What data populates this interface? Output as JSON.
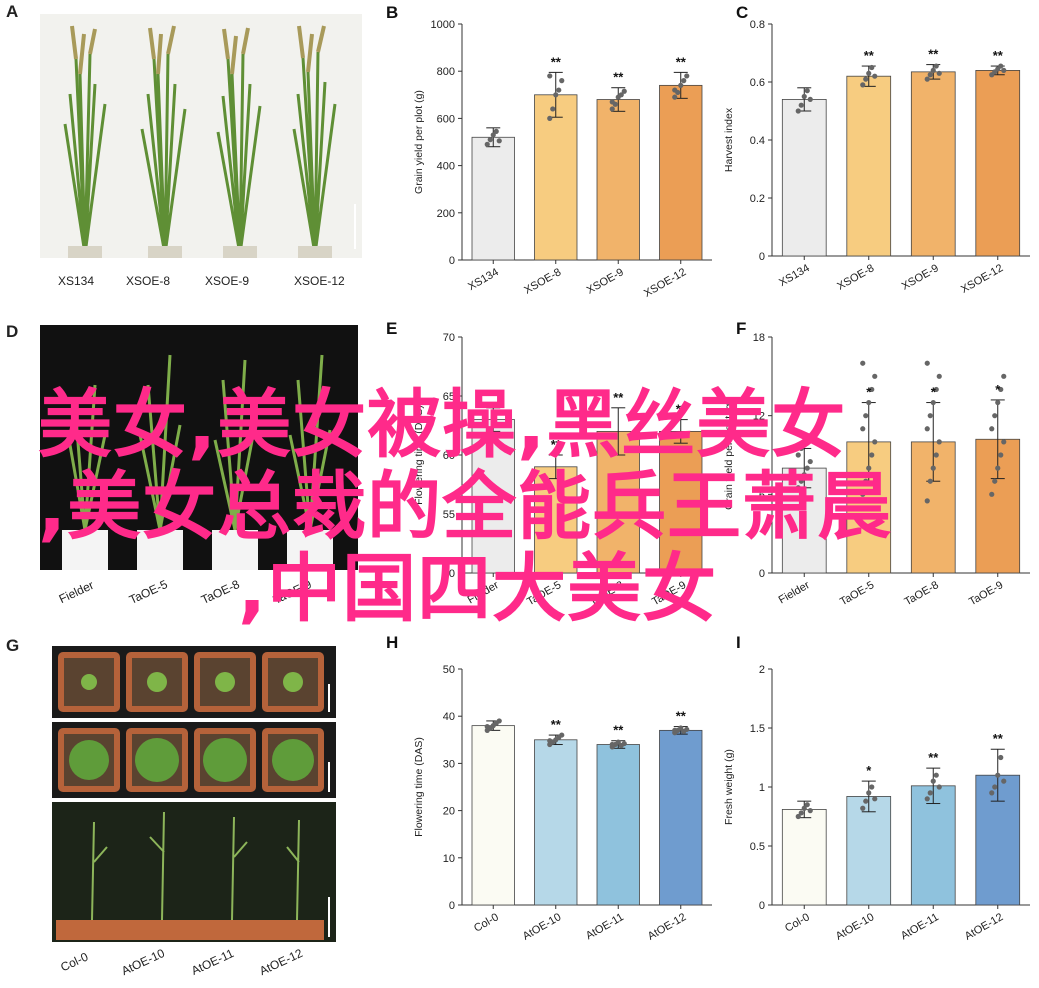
{
  "overlay": {
    "line1": "美女,美女被操,黑丝美女",
    "line2": ",美女总裁的全能兵王萧晨",
    "line3": ",中国四大美女"
  },
  "panels": {
    "A": {
      "letter": "A",
      "labels": [
        "XS134",
        "XSOE-8",
        "XSOE-9",
        "XSOE-12"
      ]
    },
    "D": {
      "letter": "D",
      "labels": [
        "Fielder",
        "TaOE-5",
        "TaOE-8",
        "TaOE-9"
      ]
    },
    "G": {
      "letter": "G",
      "labels": [
        "Col-0",
        "AtOE-10",
        "AtOE-11",
        "AtOE-12"
      ]
    }
  },
  "colors": {
    "photo_bg_dark": "#2a2a2a",
    "photo_bg_light": "#f2f2ee",
    "plant_green": "#5f8f35",
    "pot_brown": "#b5623a",
    "soil": "#5a4330",
    "overlay_text": "#ff2a8a"
  },
  "chart_data": [
    {
      "id": "B",
      "letter": "B",
      "type": "bar",
      "categories": [
        "XS134",
        "XSOE-8",
        "XSOE-9",
        "XSOE-12"
      ],
      "values": [
        520,
        700,
        680,
        740
      ],
      "errors": [
        40,
        95,
        50,
        55
      ],
      "significance": [
        "",
        "**",
        "**",
        "**"
      ],
      "ylabel": "Grain yield per plot (g)",
      "ylim": [
        0,
        1000
      ],
      "yticks": [
        0,
        200,
        400,
        600,
        800,
        1000
      ],
      "colors": [
        "#ececec",
        "#f7cc80",
        "#f1b36a",
        "#eb9e55"
      ],
      "points": [
        [
          490,
          510,
          530,
          545,
          505
        ],
        [
          600,
          640,
          700,
          720,
          760,
          780
        ],
        [
          640,
          660,
          690,
          700,
          715,
          670
        ],
        [
          690,
          710,
          740,
          760,
          780,
          720
        ]
      ]
    },
    {
      "id": "C",
      "letter": "C",
      "type": "bar",
      "categories": [
        "XS134",
        "XSOE-8",
        "XSOE-9",
        "XSOE-12"
      ],
      "values": [
        0.54,
        0.62,
        0.635,
        0.64
      ],
      "errors": [
        0.04,
        0.035,
        0.025,
        0.015
      ],
      "significance": [
        "",
        "**",
        "**",
        "**"
      ],
      "ylabel": "Harvest index",
      "ylim": [
        0,
        0.8
      ],
      "yticks": [
        0,
        0.2,
        0.4,
        0.6,
        0.8
      ],
      "colors": [
        "#ececec",
        "#f7cc80",
        "#f1b36a",
        "#eb9e55"
      ],
      "points": [
        [
          0.5,
          0.52,
          0.55,
          0.57,
          0.54
        ],
        [
          0.59,
          0.61,
          0.63,
          0.65,
          0.62
        ],
        [
          0.61,
          0.625,
          0.64,
          0.655,
          0.63
        ],
        [
          0.625,
          0.635,
          0.645,
          0.655,
          0.64
        ]
      ]
    },
    {
      "id": "E",
      "letter": "E",
      "type": "bar",
      "categories": [
        "Fielder",
        "TaOE-5",
        "TaOE-8",
        "TaOE-9"
      ],
      "values": [
        63,
        59,
        62,
        62
      ],
      "errors": [
        1,
        1,
        2,
        1
      ],
      "significance": [
        "",
        "**",
        "**",
        "**"
      ],
      "ylabel": "Flowering time (DAS)",
      "ylim": [
        50,
        70
      ],
      "yticks": [
        50,
        55,
        60,
        65,
        70
      ],
      "colors": [
        "#ececec",
        "#f7cc80",
        "#f1b36a",
        "#eb9e55"
      ],
      "points": []
    },
    {
      "id": "F",
      "letter": "F",
      "type": "bar",
      "categories": [
        "Fielder",
        "TaOE-5",
        "TaOE-8",
        "TaOE-9"
      ],
      "values": [
        8,
        10,
        10,
        10.2
      ],
      "errors": [
        1.5,
        3,
        3,
        3
      ],
      "significance": [
        "",
        "*",
        "*",
        "*"
      ],
      "ylabel": "Grain yield per plant (g)",
      "ylim": [
        0,
        18
      ],
      "yticks": [
        0,
        6,
        12,
        18
      ],
      "colors": [
        "#ececec",
        "#f7cc80",
        "#f1b36a",
        "#eb9e55"
      ],
      "points": [
        [
          6.5,
          7,
          7.5,
          8,
          8.5,
          9,
          9.5
        ],
        [
          6,
          7,
          8,
          9,
          10,
          11,
          12,
          13,
          14,
          15,
          16
        ],
        [
          5.5,
          7,
          8,
          9,
          10,
          11,
          12,
          13,
          14,
          15,
          16
        ],
        [
          6,
          7,
          8,
          9,
          10,
          11,
          12,
          13,
          14,
          15
        ]
      ]
    },
    {
      "id": "H",
      "letter": "H",
      "type": "bar",
      "categories": [
        "Col-0",
        "AtOE-10",
        "AtOE-11",
        "AtOE-12"
      ],
      "values": [
        38,
        35,
        34,
        37
      ],
      "errors": [
        1,
        1,
        0.8,
        0.8
      ],
      "significance": [
        "",
        "**",
        "**",
        "**"
      ],
      "ylabel": "Flowering time (DAS)",
      "ylim": [
        0,
        50
      ],
      "yticks": [
        0,
        10,
        20,
        30,
        40,
        50
      ],
      "colors": [
        "#fbfbf3",
        "#b6d8e8",
        "#8fc2dd",
        "#6f9ccf"
      ],
      "points": [
        [
          37,
          37.5,
          38,
          38.5,
          39,
          37.8
        ],
        [
          34,
          34.5,
          35,
          35.5,
          36,
          34.8
        ],
        [
          33.5,
          34,
          34.5,
          33.8,
          34.2,
          34
        ],
        [
          36.5,
          37,
          37.5,
          36.8,
          37.2,
          37
        ]
      ]
    },
    {
      "id": "I",
      "letter": "I",
      "type": "bar",
      "categories": [
        "Col-0",
        "AtOE-10",
        "AtOE-11",
        "AtOE-12"
      ],
      "values": [
        0.81,
        0.92,
        1.01,
        1.1
      ],
      "errors": [
        0.07,
        0.13,
        0.15,
        0.22
      ],
      "significance": [
        "",
        "*",
        "**",
        "**"
      ],
      "ylabel": "Fresh weight (g)",
      "ylim": [
        0,
        2.0
      ],
      "yticks": [
        0,
        0.5,
        1.0,
        1.5,
        2.0
      ],
      "colors": [
        "#fbfbf3",
        "#b6d8e8",
        "#8fc2dd",
        "#6f9ccf"
      ],
      "points": [
        [
          0.75,
          0.78,
          0.82,
          0.85,
          0.8
        ],
        [
          0.82,
          0.88,
          0.95,
          1.0,
          0.9
        ],
        [
          0.9,
          0.95,
          1.05,
          1.1,
          1.0
        ],
        [
          0.95,
          1.0,
          1.1,
          1.25,
          1.05
        ]
      ]
    }
  ]
}
